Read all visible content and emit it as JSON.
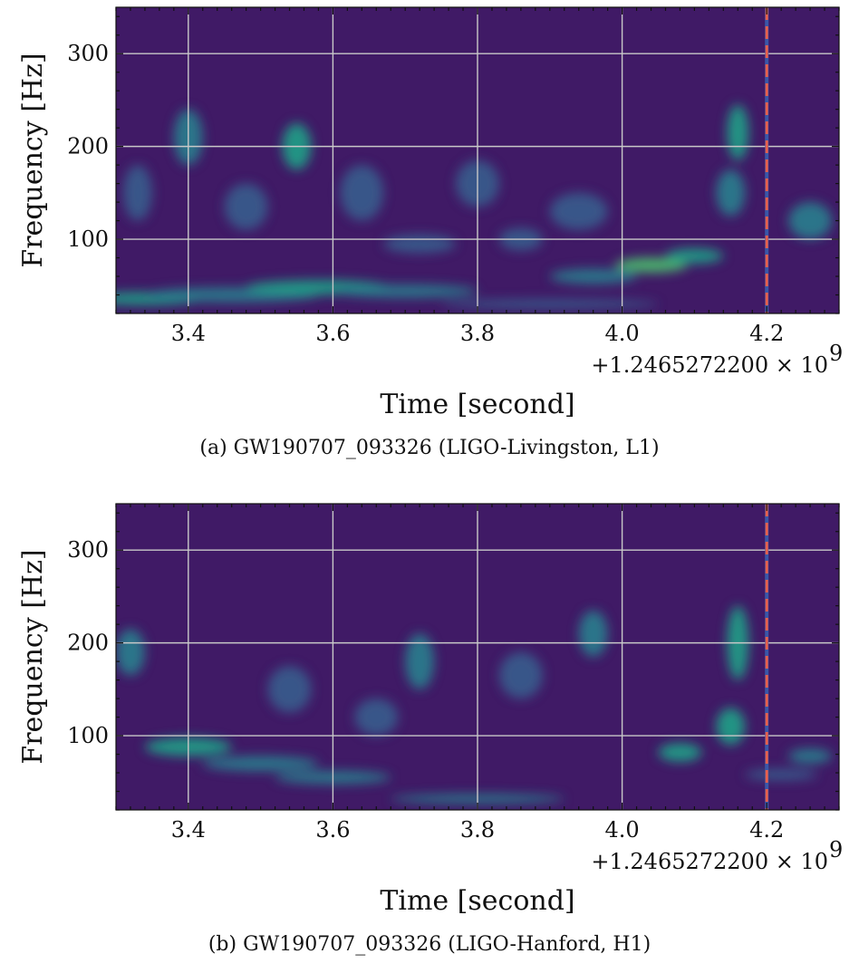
{
  "chart_data": [
    {
      "type": "heatmap",
      "title": "",
      "xlabel": "Time [second]",
      "ylabel": "Frequency [Hz]",
      "x_offset_label": "+1.2465272200 × 10",
      "x_offset_exponent": "9",
      "xlim": [
        3.3,
        4.3
      ],
      "ylim": [
        20,
        350
      ],
      "xticks": [
        3.4,
        3.6,
        3.8,
        4.0,
        4.2
      ],
      "xtick_labels": [
        "3.4",
        "3.6",
        "3.8",
        "4.0",
        "4.2"
      ],
      "yticks": [
        100,
        200,
        300
      ],
      "ytick_labels": [
        "100",
        "200",
        "300"
      ],
      "grid": true,
      "colormap": "viridis",
      "merger_time": 4.2,
      "merger_line_colors": [
        "#3a57a8",
        "#e8604c"
      ],
      "blobs": [
        {
          "t": 3.34,
          "f": 36,
          "dt": 0.08,
          "df": 7,
          "level": 0.55
        },
        {
          "t": 3.46,
          "f": 40,
          "dt": 0.12,
          "df": 8,
          "level": 0.45
        },
        {
          "t": 3.58,
          "f": 48,
          "dt": 0.1,
          "df": 8,
          "level": 0.5
        },
        {
          "t": 3.7,
          "f": 44,
          "dt": 0.1,
          "df": 7,
          "level": 0.35
        },
        {
          "t": 3.55,
          "f": 200,
          "dt": 0.02,
          "df": 25,
          "level": 0.6
        },
        {
          "t": 3.4,
          "f": 210,
          "dt": 0.02,
          "df": 30,
          "level": 0.35
        },
        {
          "t": 3.48,
          "f": 135,
          "dt": 0.03,
          "df": 25,
          "level": 0.3
        },
        {
          "t": 3.64,
          "f": 150,
          "dt": 0.03,
          "df": 30,
          "level": 0.3
        },
        {
          "t": 3.8,
          "f": 160,
          "dt": 0.03,
          "df": 25,
          "level": 0.3
        },
        {
          "t": 3.94,
          "f": 130,
          "dt": 0.04,
          "df": 20,
          "level": 0.3
        },
        {
          "t": 4.04,
          "f": 72,
          "dt": 0.05,
          "df": 8,
          "level": 0.75
        },
        {
          "t": 4.1,
          "f": 82,
          "dt": 0.04,
          "df": 8,
          "level": 0.6
        },
        {
          "t": 4.16,
          "f": 215,
          "dt": 0.015,
          "df": 30,
          "level": 0.6
        },
        {
          "t": 4.15,
          "f": 150,
          "dt": 0.02,
          "df": 25,
          "level": 0.35
        },
        {
          "t": 4.26,
          "f": 120,
          "dt": 0.03,
          "df": 20,
          "level": 0.35
        },
        {
          "t": 3.9,
          "f": 30,
          "dt": 0.15,
          "df": 5,
          "level": 0.3
        },
        {
          "t": 3.96,
          "f": 60,
          "dt": 0.06,
          "df": 8,
          "level": 0.35
        },
        {
          "t": 3.72,
          "f": 95,
          "dt": 0.05,
          "df": 10,
          "level": 0.3
        },
        {
          "t": 3.86,
          "f": 100,
          "dt": 0.03,
          "df": 12,
          "level": 0.3
        },
        {
          "t": 3.33,
          "f": 150,
          "dt": 0.02,
          "df": 30,
          "level": 0.3
        }
      ],
      "caption": "(a)  GW190707_093326 (LIGO-Livingston, L1)"
    },
    {
      "type": "heatmap",
      "title": "",
      "xlabel": "Time [second]",
      "ylabel": "Frequency [Hz]",
      "x_offset_label": "+1.2465272200 × 10",
      "x_offset_exponent": "9",
      "xlim": [
        3.3,
        4.3
      ],
      "ylim": [
        20,
        350
      ],
      "xticks": [
        3.4,
        3.6,
        3.8,
        4.0,
        4.2
      ],
      "xtick_labels": [
        "3.4",
        "3.6",
        "3.8",
        "4.0",
        "4.2"
      ],
      "yticks": [
        100,
        200,
        300
      ],
      "ytick_labels": [
        "100",
        "200",
        "300"
      ],
      "grid": true,
      "colormap": "viridis",
      "merger_time": 4.2,
      "merger_line_colors": [
        "#3a57a8",
        "#e8604c"
      ],
      "blobs": [
        {
          "t": 3.4,
          "f": 88,
          "dt": 0.06,
          "df": 10,
          "level": 0.5
        },
        {
          "t": 3.5,
          "f": 70,
          "dt": 0.08,
          "df": 8,
          "level": 0.45
        },
        {
          "t": 3.6,
          "f": 55,
          "dt": 0.08,
          "df": 7,
          "level": 0.35
        },
        {
          "t": 3.8,
          "f": 32,
          "dt": 0.12,
          "df": 5,
          "level": 0.45
        },
        {
          "t": 4.08,
          "f": 82,
          "dt": 0.03,
          "df": 10,
          "level": 0.65
        },
        {
          "t": 4.15,
          "f": 110,
          "dt": 0.02,
          "df": 20,
          "level": 0.5
        },
        {
          "t": 4.16,
          "f": 200,
          "dt": 0.015,
          "df": 40,
          "level": 0.5
        },
        {
          "t": 3.32,
          "f": 190,
          "dt": 0.02,
          "df": 25,
          "level": 0.4
        },
        {
          "t": 3.72,
          "f": 180,
          "dt": 0.02,
          "df": 30,
          "level": 0.4
        },
        {
          "t": 3.96,
          "f": 210,
          "dt": 0.02,
          "df": 25,
          "level": 0.35
        },
        {
          "t": 3.86,
          "f": 165,
          "dt": 0.03,
          "df": 25,
          "level": 0.3
        },
        {
          "t": 3.54,
          "f": 150,
          "dt": 0.03,
          "df": 25,
          "level": 0.3
        },
        {
          "t": 4.26,
          "f": 78,
          "dt": 0.03,
          "df": 8,
          "level": 0.35
        },
        {
          "t": 3.66,
          "f": 120,
          "dt": 0.03,
          "df": 20,
          "level": 0.3
        },
        {
          "t": 4.22,
          "f": 58,
          "dt": 0.05,
          "df": 6,
          "level": 0.3
        }
      ],
      "caption": "(b)  GW190707_093326 (LIGO-Hanford, H1)"
    }
  ]
}
